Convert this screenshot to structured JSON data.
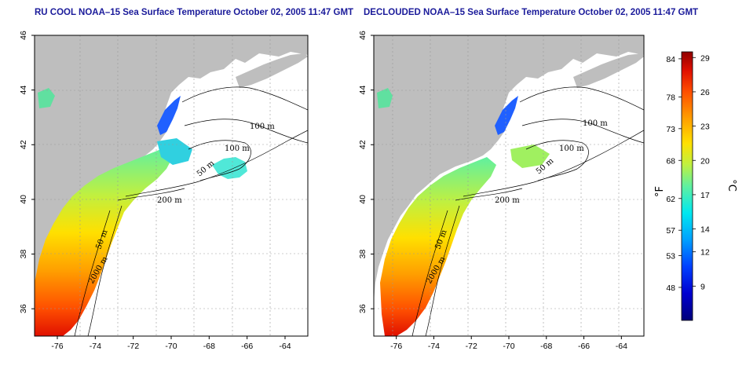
{
  "titles": {
    "left": "RU COOL NOAA–15 Sea Surface Temperature October 02, 2005 11:47 GMT",
    "right": "DECLOUDED NOAA–15 Sea Surface Temperature October 02, 2005 11:47 GMT"
  },
  "axes": {
    "lon_ticks": [
      -76,
      -74,
      -72,
      -70,
      -68,
      -66,
      -64
    ],
    "lat_ticks": [
      36,
      38,
      40,
      42,
      44,
      46
    ],
    "lon_range": [
      -77.2,
      -62.8
    ],
    "lat_range": [
      35,
      46
    ]
  },
  "contour_labels": {
    "left": [
      "100 m",
      "100 m",
      "50 m",
      "200 m",
      "50 m",
      "2000 m"
    ],
    "right": [
      "100 m",
      "100 m",
      "50 m",
      "200 m",
      "50 m",
      "2000 m"
    ]
  },
  "colorbar": {
    "fahrenheit_ticks": [
      84,
      78,
      73,
      68,
      62,
      57,
      53,
      48
    ],
    "celsius_ticks": [
      29,
      26,
      23,
      20,
      17,
      14,
      12,
      9
    ],
    "fahrenheit_label": "°F",
    "celsius_label": "°C",
    "min_c": 6,
    "max_c": 29.5,
    "colors": [
      "#00007a",
      "#0000d0",
      "#0040ff",
      "#00a0ff",
      "#00e8f0",
      "#60f0a0",
      "#c0f040",
      "#ffe000",
      "#ffa000",
      "#ff5000",
      "#e01000",
      "#900000"
    ]
  },
  "colors": {
    "land": "#bebebe",
    "title": "#1a1a9a"
  }
}
